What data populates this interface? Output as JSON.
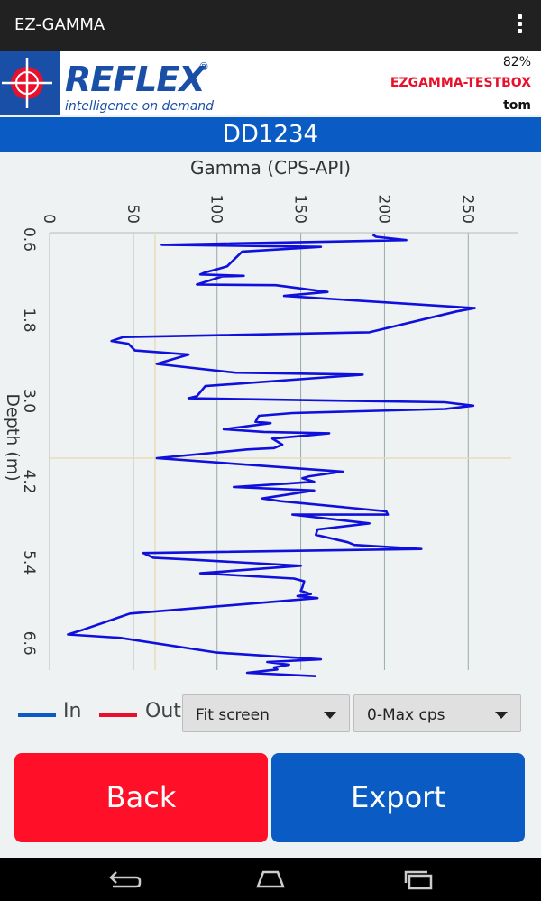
{
  "app": {
    "title": "EZ-GAMMA"
  },
  "header": {
    "logo_name": "REFLEX",
    "logo_reg": "®",
    "tagline": "intelligence on demand",
    "battery": "82%",
    "device": "EZGAMMA-TESTBOX",
    "user": "tom"
  },
  "hole": {
    "id": "DD1234"
  },
  "chart_data": {
    "type": "line",
    "title": "Gamma (CPS-API)",
    "ylabel": "Depth (m)",
    "xlabel": "",
    "xlim": [
      0,
      280
    ],
    "ylim": [
      0.5,
      7.0
    ],
    "x_ticks": [
      0,
      50,
      100,
      150,
      200,
      250
    ],
    "y_ticks": [
      0.6,
      1.8,
      3.0,
      4.2,
      5.4,
      6.6
    ],
    "y_tick_labels": [
      "0.6",
      "1.8",
      "3.0",
      "4.2",
      "5.4",
      "6.6"
    ],
    "grid": true,
    "series": [
      {
        "name": "In",
        "color": "#1010dc",
        "points": [
          [
            193,
            0.53
          ],
          [
            195,
            0.56
          ],
          [
            213,
            0.61
          ],
          [
            67,
            0.68
          ],
          [
            162,
            0.71
          ],
          [
            115,
            0.78
          ],
          [
            106,
            1.0
          ],
          [
            102,
            1.03
          ],
          [
            93,
            1.09
          ],
          [
            90,
            1.12
          ],
          [
            116,
            1.14
          ],
          [
            103,
            1.15
          ],
          [
            88,
            1.27
          ],
          [
            135,
            1.28
          ],
          [
            166,
            1.38
          ],
          [
            140,
            1.44
          ],
          [
            254,
            1.62
          ],
          [
            243,
            1.67
          ],
          [
            191,
            1.98
          ],
          [
            44,
            2.05
          ],
          [
            37,
            2.11
          ],
          [
            47,
            2.15
          ],
          [
            51,
            2.25
          ],
          [
            83,
            2.31
          ],
          [
            64,
            2.45
          ],
          [
            111,
            2.58
          ],
          [
            187,
            2.61
          ],
          [
            93,
            2.78
          ],
          [
            88,
            2.93
          ],
          [
            83,
            2.96
          ],
          [
            158,
            2.99
          ],
          [
            236,
            3.02
          ],
          [
            253,
            3.07
          ],
          [
            236,
            3.12
          ],
          [
            145,
            3.18
          ],
          [
            125,
            3.22
          ],
          [
            123,
            3.31
          ],
          [
            132,
            3.33
          ],
          [
            104,
            3.42
          ],
          [
            128,
            3.46
          ],
          [
            167,
            3.48
          ],
          [
            155,
            3.51
          ],
          [
            133,
            3.56
          ],
          [
            139,
            3.65
          ],
          [
            134,
            3.7
          ],
          [
            118,
            3.72
          ],
          [
            81,
            3.81
          ],
          [
            64,
            3.85
          ],
          [
            175,
            4.05
          ],
          [
            155,
            4.12
          ],
          [
            151,
            4.15
          ],
          [
            158,
            4.2
          ],
          [
            141,
            4.23
          ],
          [
            110,
            4.28
          ],
          [
            158,
            4.33
          ],
          [
            127,
            4.45
          ],
          [
            138,
            4.49
          ],
          [
            201,
            4.64
          ],
          [
            202,
            4.69
          ],
          [
            145,
            4.69
          ],
          [
            191,
            4.82
          ],
          [
            160,
            4.91
          ],
          [
            159,
            4.99
          ],
          [
            178,
            5.1
          ],
          [
            182,
            5.14
          ],
          [
            222,
            5.2
          ],
          [
            56,
            5.26
          ],
          [
            62,
            5.33
          ],
          [
            85,
            5.36
          ],
          [
            150,
            5.45
          ],
          [
            90,
            5.56
          ],
          [
            146,
            5.64
          ],
          [
            152,
            5.68
          ],
          [
            151,
            5.77
          ],
          [
            150,
            5.82
          ],
          [
            156,
            5.87
          ],
          [
            148,
            5.9
          ],
          [
            160,
            5.93
          ],
          [
            48,
            6.16
          ],
          [
            20,
            6.4
          ],
          [
            11,
            6.47
          ],
          [
            42,
            6.52
          ],
          [
            100,
            6.74
          ],
          [
            162,
            6.84
          ],
          [
            130,
            6.88
          ],
          [
            143,
            6.92
          ],
          [
            134,
            6.96
          ],
          [
            136,
            6.99
          ],
          [
            118,
            7.04
          ],
          [
            159,
            7.09
          ]
        ]
      }
    ],
    "out_series_name": "Out",
    "crosshair": {
      "x": 63,
      "y": 3.85
    }
  },
  "legend": {
    "in_label": "In",
    "out_label": "Out",
    "in_color": "#0a5bc4",
    "out_color": "#e8102a"
  },
  "controls": {
    "scale_dropdown": "Fit screen",
    "range_dropdown": "0-Max cps"
  },
  "buttons": {
    "back": "Back",
    "export": "Export",
    "back_color": "#ff1028",
    "export_color": "#0a5bc4"
  }
}
